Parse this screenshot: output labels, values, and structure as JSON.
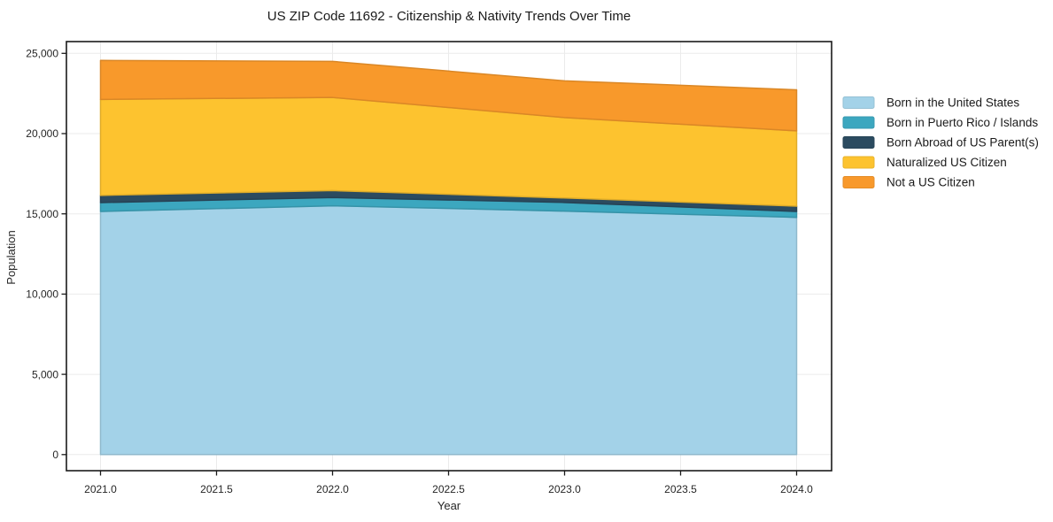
{
  "window": {
    "background_color": "#ffffff",
    "text_color": "#1f1f1f",
    "gridline_color": "#ebebeb",
    "axis_border_color": "#1a1a1a"
  },
  "chart_data": {
    "type": "area",
    "stacked": true,
    "title": "US ZIP Code 11692 - Citizenship & Nativity Trends Over Time",
    "xlabel": "Year",
    "ylabel": "Population",
    "x": [
      2021,
      2022,
      2023,
      2024
    ],
    "series": [
      {
        "name": "Born in the United States",
        "color": "#a3d2e8",
        "values": [
          15150,
          15500,
          15170,
          14780
        ]
      },
      {
        "name": "Born in Puerto Rico / Islands",
        "color": "#3ca7bf",
        "values": [
          550,
          520,
          540,
          370
        ]
      },
      {
        "name": "Born Abroad of US Parent(s)",
        "color": "#2b4b60",
        "values": [
          450,
          430,
          280,
          330
        ]
      },
      {
        "name": "Naturalized US Citizen",
        "color": "#fdc32f",
        "values": [
          5980,
          5800,
          5010,
          4690
        ]
      },
      {
        "name": "Not a US Citizen",
        "color": "#f8992b",
        "values": [
          2430,
          2250,
          2290,
          2560
        ]
      }
    ],
    "stacked_totals": [
      24560,
      24500,
      23290,
      22730
    ],
    "x_tick_labels": [
      "2021.0",
      "2021.5",
      "2022.0",
      "2022.5",
      "2023.0",
      "2023.5",
      "2024.0"
    ],
    "x_tick_values": [
      2021,
      2021.5,
      2022,
      2022.5,
      2023,
      2023.5,
      2024
    ],
    "y_tick_labels": [
      "0",
      "5,000",
      "10,000",
      "15,000",
      "20,000",
      "25,000"
    ],
    "y_tick_values": [
      0,
      5000,
      10000,
      15000,
      20000,
      25000
    ],
    "xlim": [
      2020.85,
      2024.15
    ],
    "ylim": [
      -1000,
      25740
    ],
    "grid": true,
    "legend_position": "right"
  }
}
